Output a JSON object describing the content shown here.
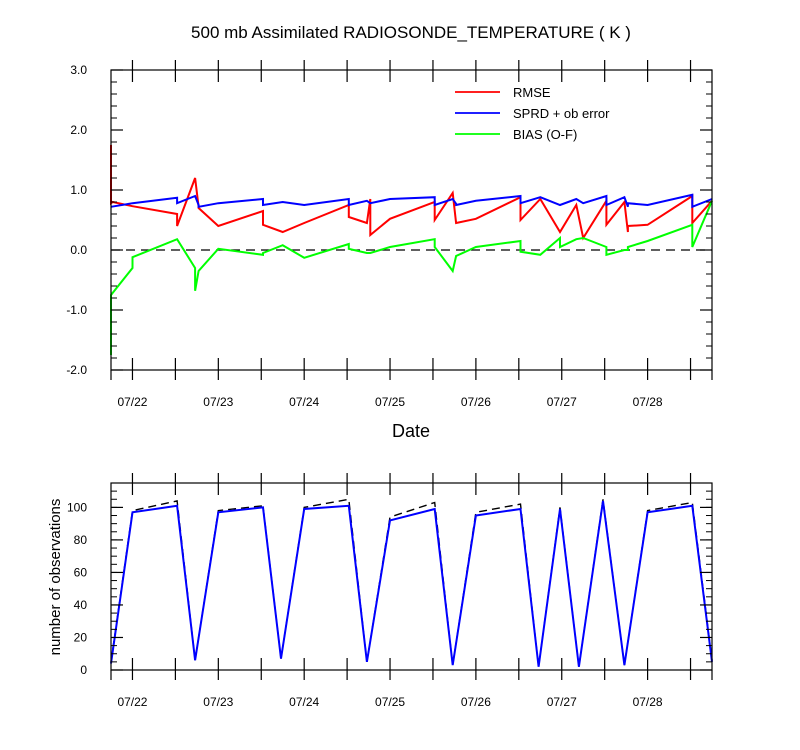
{
  "chart_data": [
    {
      "type": "line",
      "title": "500 mb Assimilated RADIOSONDE_TEMPERATURE ( K )",
      "xlabel": "Date",
      "ylabel": "",
      "xlim": [
        0,
        7
      ],
      "ylim": [
        -2.0,
        3.0
      ],
      "y_ticks": [
        "3.0",
        "2.0",
        "1.0",
        "0.0",
        "-1.0",
        "-2.0"
      ],
      "x_tick_labels": [
        "07/22",
        "07/23",
        "07/24",
        "07/25",
        "07/26",
        "07/27",
        "07/28"
      ],
      "legend": {
        "position": "top-right"
      },
      "reference_line": {
        "y": 0.0,
        "style": "dashed"
      },
      "series": [
        {
          "name": "RMSE",
          "color": "#ff0000",
          "x": [
            0.0,
            0.0,
            0.02,
            0.25,
            0.77,
            0.77,
            0.98,
            1.02,
            1.02,
            1.25,
            1.77,
            1.77,
            2.0,
            2.25,
            2.77,
            2.77,
            2.98,
            3.02,
            3.02,
            3.25,
            3.77,
            3.77,
            3.98,
            4.02,
            4.02,
            4.25,
            4.77,
            4.77,
            5.0,
            5.23,
            5.23,
            5.42,
            5.5,
            5.77,
            5.77,
            5.98,
            6.02,
            6.02,
            6.25,
            6.77,
            6.77,
            7.0
          ],
          "y": [
            1.75,
            0.78,
            0.8,
            0.73,
            0.6,
            0.4,
            1.2,
            0.72,
            0.7,
            0.4,
            0.65,
            0.42,
            0.3,
            0.45,
            0.75,
            0.55,
            0.45,
            0.85,
            0.25,
            0.52,
            0.8,
            0.5,
            0.95,
            0.45,
            0.45,
            0.52,
            0.88,
            0.5,
            0.85,
            0.3,
            0.3,
            0.75,
            0.2,
            0.82,
            0.42,
            0.8,
            0.3,
            0.4,
            0.42,
            0.9,
            0.45,
            0.82
          ]
        },
        {
          "name": "SPRD + ob error",
          "color": "#0000ff",
          "x": [
            0.0,
            0.25,
            0.77,
            0.77,
            0.98,
            1.02,
            1.02,
            1.25,
            1.77,
            1.77,
            2.0,
            2.25,
            2.77,
            2.77,
            2.98,
            3.02,
            3.02,
            3.25,
            3.77,
            3.77,
            3.98,
            4.02,
            4.02,
            4.25,
            4.77,
            4.77,
            5.0,
            5.23,
            5.23,
            5.42,
            5.5,
            5.77,
            5.77,
            5.98,
            6.02,
            6.02,
            6.25,
            6.77,
            6.77,
            7.0
          ],
          "y": [
            0.72,
            0.78,
            0.87,
            0.78,
            0.9,
            0.75,
            0.72,
            0.78,
            0.85,
            0.75,
            0.8,
            0.75,
            0.85,
            0.75,
            0.82,
            0.78,
            0.78,
            0.85,
            0.88,
            0.75,
            0.85,
            0.77,
            0.75,
            0.82,
            0.9,
            0.78,
            0.88,
            0.75,
            0.75,
            0.85,
            0.78,
            0.9,
            0.75,
            0.88,
            0.72,
            0.78,
            0.75,
            0.92,
            0.72,
            0.85
          ]
        },
        {
          "name": "BIAS (O-F)",
          "color": "#00ff00",
          "x": [
            0.0,
            0.0,
            0.25,
            0.25,
            0.77,
            0.98,
            0.98,
            1.02,
            1.02,
            1.25,
            1.77,
            1.77,
            2.0,
            2.25,
            2.77,
            2.77,
            2.98,
            3.02,
            3.02,
            3.25,
            3.77,
            3.77,
            3.98,
            4.02,
            4.02,
            4.25,
            4.77,
            4.77,
            5.0,
            5.23,
            5.23,
            5.42,
            5.5,
            5.77,
            5.77,
            5.98,
            6.02,
            6.02,
            6.25,
            6.77,
            6.77,
            7.0
          ],
          "y": [
            -1.75,
            -0.75,
            -0.3,
            -0.12,
            0.18,
            -0.3,
            -0.68,
            -0.35,
            -0.35,
            0.02,
            -0.08,
            -0.05,
            0.08,
            -0.13,
            0.1,
            0.02,
            -0.05,
            -0.05,
            -0.05,
            0.05,
            0.18,
            0.05,
            -0.35,
            -0.1,
            -0.1,
            0.05,
            0.15,
            -0.03,
            -0.08,
            0.2,
            0.05,
            0.18,
            0.2,
            0.05,
            -0.08,
            0.0,
            0.0,
            0.05,
            0.15,
            0.42,
            0.05,
            0.82
          ]
        }
      ]
    },
    {
      "type": "line",
      "title": "",
      "xlabel": "",
      "ylabel": "number of observations",
      "xlim": [
        0,
        7
      ],
      "ylim": [
        0,
        115
      ],
      "y_ticks": [
        "0",
        "20",
        "40",
        "60",
        "80",
        "100"
      ],
      "x_tick_labels": [
        "07/22",
        "07/23",
        "07/24",
        "07/25",
        "07/26",
        "07/27",
        "07/28"
      ],
      "series": [
        {
          "name": "",
          "color": "#000000",
          "style": "dashed",
          "x": [
            0.0,
            0.25,
            0.77,
            0.98,
            1.25,
            1.77,
            1.98,
            2.25,
            2.77,
            2.98,
            3.25,
            3.77,
            3.98,
            4.25,
            4.77,
            4.98,
            5.23,
            5.45,
            5.73,
            5.98,
            6.25,
            6.77,
            7.0
          ],
          "y": [
            5,
            98,
            104,
            6,
            98,
            101,
            7,
            100,
            105,
            5,
            94,
            103,
            3,
            97,
            102,
            2,
            100,
            2,
            105,
            3,
            98,
            103,
            6
          ]
        },
        {
          "name": "",
          "color": "#0000ff",
          "style": "solid",
          "x": [
            0.0,
            0.25,
            0.77,
            0.98,
            1.25,
            1.77,
            1.98,
            2.25,
            2.77,
            2.98,
            3.25,
            3.77,
            3.98,
            4.25,
            4.77,
            4.98,
            5.23,
            5.45,
            5.73,
            5.98,
            6.25,
            6.77,
            7.0
          ],
          "y": [
            4,
            97,
            101,
            6,
            97,
            100,
            7,
            99,
            101,
            5,
            92,
            99,
            3,
            95,
            99,
            2,
            99,
            2,
            104,
            3,
            97,
            101,
            5
          ]
        }
      ]
    }
  ]
}
